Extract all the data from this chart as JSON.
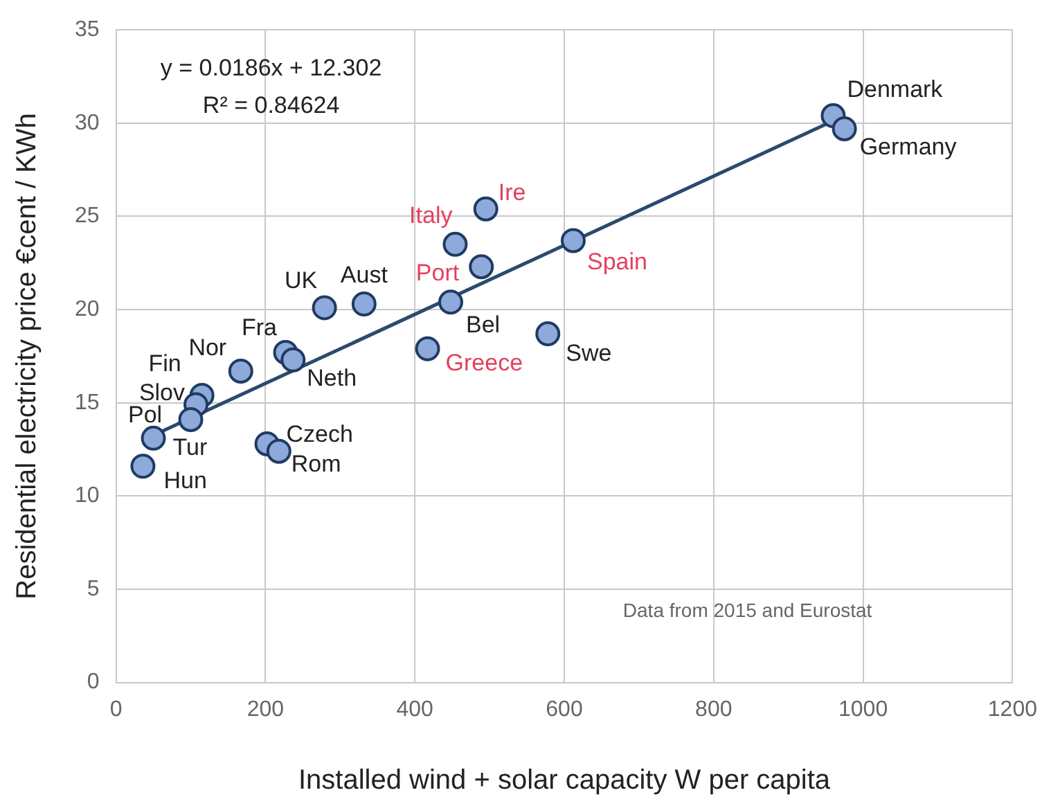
{
  "chart_data": {
    "type": "scatter",
    "xlabel": "Installed wind + solar capacity W per capita",
    "ylabel": "Residential electricity price €cent / KWh",
    "xlim": [
      0,
      1200
    ],
    "xticks": [
      0,
      200,
      400,
      600,
      800,
      1000,
      1200
    ],
    "ylim": [
      0,
      35
    ],
    "yticks": [
      0,
      5,
      10,
      15,
      20,
      25,
      30,
      35
    ],
    "grid": true,
    "legend": false,
    "series": [
      {
        "color": "#8eaadb",
        "marker": "circle",
        "x": [
          960,
          975,
          612,
          578,
          495,
          454,
          489,
          448,
          417,
          332,
          279,
          167,
          227,
          237,
          115,
          107,
          100,
          50,
          36,
          202,
          218
        ],
        "values": [
          30.4,
          29.7,
          23.7,
          18.7,
          25.4,
          23.5,
          22.3,
          20.4,
          17.9,
          20.3,
          20.1,
          16.7,
          17.7,
          17.3,
          15.4,
          14.9,
          14.1,
          13.1,
          11.6,
          12.8,
          12.4
        ]
      },
      {
        "type": "line",
        "color": "#2b4a6f",
        "marker": "none",
        "x": [
          36,
          975
        ],
        "values": [
          13.0,
          30.4
        ]
      }
    ],
    "annotations": [
      {
        "text": "Denmark",
        "x": 960,
        "y": 30.4
      },
      {
        "text": "Germany",
        "x": 975,
        "y": 29.7
      },
      {
        "text": "Spain",
        "x": 612,
        "y": 23.7
      },
      {
        "text": "Swe",
        "x": 578,
        "y": 18.7
      },
      {
        "text": "Ire",
        "x": 495,
        "y": 25.4
      },
      {
        "text": "Italy",
        "x": 454,
        "y": 23.5
      },
      {
        "text": "Port",
        "x": 489,
        "y": 22.3
      },
      {
        "text": "Bel",
        "x": 448,
        "y": 20.4
      },
      {
        "text": "Greece",
        "x": 417,
        "y": 17.9
      },
      {
        "text": "Aust",
        "x": 332,
        "y": 20.3
      },
      {
        "text": "UK",
        "x": 279,
        "y": 20.1
      },
      {
        "text": "Nor",
        "x": 167,
        "y": 16.7
      },
      {
        "text": "Fra",
        "x": 227,
        "y": 17.7
      },
      {
        "text": "Neth",
        "x": 237,
        "y": 17.3
      },
      {
        "text": "Fin",
        "x": 115,
        "y": 15.4
      },
      {
        "text": "Slov",
        "x": 107,
        "y": 14.9
      },
      {
        "text": "Pol",
        "x": 50,
        "y": 13.1
      },
      {
        "text": "Tur",
        "x": 100,
        "y": 14.1
      },
      {
        "text": "Hun",
        "x": 36,
        "y": 11.6
      },
      {
        "text": "Czech",
        "x": 202,
        "y": 12.8
      },
      {
        "text": "Rom",
        "x": 218,
        "y": 12.4
      },
      "y = 0.0186x + 12.302",
      "R² = 0.84624",
      "Data from 2015 and Eurostat"
    ]
  }
}
